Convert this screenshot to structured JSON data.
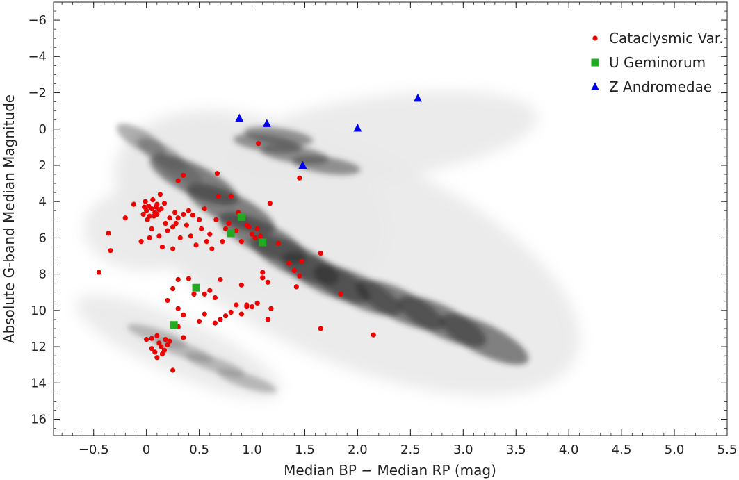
{
  "chart_data": {
    "type": "scatter",
    "title": "",
    "xlabel": "Median BP − Median RP (mag)",
    "ylabel": "Absolute G-band Median Magnitude",
    "xlim": [
      -0.88,
      5.5
    ],
    "ylim": [
      16.9,
      -7.0
    ],
    "y_inverted": true,
    "grid": false,
    "legend_position": "top-right",
    "x_ticks": [
      -0.5,
      0,
      0.5,
      1.0,
      1.5,
      2.0,
      2.5,
      3.0,
      3.5,
      4.0,
      4.5,
      5.0,
      5.5
    ],
    "x_tick_labels": [
      "−0.5",
      "0",
      "0.5",
      "1.0",
      "1.5",
      "2.0",
      "2.5",
      "3.0",
      "3.5",
      "4.0",
      "4.5",
      "5.0",
      "5.5"
    ],
    "y_ticks": [
      -6,
      -4,
      -2,
      0,
      2,
      4,
      6,
      8,
      10,
      12,
      14,
      16
    ],
    "y_tick_labels": [
      "−6",
      "−4",
      "−2",
      "0",
      "2",
      "4",
      "6",
      "8",
      "10",
      "12",
      "14",
      "16"
    ],
    "background": {
      "description": "grey density of field stars (Gaia HR diagram)",
      "color": "#555555"
    },
    "series": [
      {
        "name": "Cataclysmic Var.",
        "marker": "circle",
        "color": "#ee0000",
        "points": [
          [
            -0.45,
            7.9
          ],
          [
            -0.36,
            5.75
          ],
          [
            -0.34,
            6.7
          ],
          [
            -0.2,
            4.9
          ],
          [
            -0.12,
            4.15
          ],
          [
            -0.05,
            6.2
          ],
          [
            -0.03,
            4.7
          ],
          [
            -0.02,
            4.3
          ],
          [
            -0.01,
            4.0
          ],
          [
            0.0,
            4.5
          ],
          [
            0.01,
            5.0
          ],
          [
            0.02,
            4.25
          ],
          [
            0.03,
            6.0
          ],
          [
            0.03,
            4.8
          ],
          [
            0.05,
            4.4
          ],
          [
            0.05,
            5.5
          ],
          [
            0.06,
            3.9
          ],
          [
            0.07,
            4.8
          ],
          [
            0.08,
            4.6
          ],
          [
            0.09,
            4.3
          ],
          [
            0.1,
            4.15
          ],
          [
            0.1,
            4.7
          ],
          [
            0.12,
            4.45
          ],
          [
            0.12,
            5.9
          ],
          [
            0.13,
            3.6
          ],
          [
            0.14,
            4.4
          ],
          [
            0.15,
            6.5
          ],
          [
            0.17,
            4.1
          ],
          [
            0.18,
            5.2
          ],
          [
            0.2,
            5.6
          ],
          [
            0.22,
            4.9
          ],
          [
            0.25,
            5.4
          ],
          [
            0.25,
            6.6
          ],
          [
            0.27,
            4.6
          ],
          [
            0.28,
            5.2
          ],
          [
            0.3,
            4.9
          ],
          [
            0.32,
            6.0
          ],
          [
            0.35,
            4.7
          ],
          [
            0.38,
            5.3
          ],
          [
            0.4,
            4.5
          ],
          [
            0.42,
            5.9
          ],
          [
            0.44,
            4.75
          ],
          [
            0.47,
            6.4
          ],
          [
            0.5,
            5.0
          ],
          [
            0.52,
            5.5
          ],
          [
            0.55,
            4.4
          ],
          [
            0.57,
            6.2
          ],
          [
            0.6,
            5.8
          ],
          [
            0.62,
            6.6
          ],
          [
            0.66,
            5.0
          ],
          [
            0.68,
            3.7
          ],
          [
            0.72,
            6.2
          ],
          [
            0.75,
            5.5
          ],
          [
            0.78,
            5.2
          ],
          [
            0.8,
            3.7
          ],
          [
            0.85,
            5.6
          ],
          [
            0.87,
            4.6
          ],
          [
            0.9,
            6.2
          ],
          [
            0.95,
            5.3
          ],
          [
            0.97,
            5.4
          ],
          [
            1.0,
            5.8
          ],
          [
            1.03,
            6.0
          ],
          [
            1.05,
            5.5
          ],
          [
            1.08,
            5.9
          ],
          [
            0.3,
            2.85
          ],
          [
            0.35,
            2.55
          ],
          [
            0.67,
            2.45
          ],
          [
            1.06,
            0.8
          ],
          [
            1.17,
            4.1
          ],
          [
            1.25,
            6.3
          ],
          [
            1.35,
            7.4
          ],
          [
            1.4,
            7.8
          ],
          [
            1.42,
            8.7
          ],
          [
            1.45,
            8.1
          ],
          [
            1.47,
            7.3
          ],
          [
            1.65,
            6.85
          ],
          [
            1.45,
            2.7
          ],
          [
            1.84,
            9.1
          ],
          [
            1.65,
            11.0
          ],
          [
            2.15,
            11.35
          ],
          [
            0.2,
            9.45
          ],
          [
            0.25,
            8.8
          ],
          [
            0.3,
            8.3
          ],
          [
            0.3,
            9.9
          ],
          [
            0.35,
            10.25
          ],
          [
            0.4,
            8.25
          ],
          [
            0.45,
            9.1
          ],
          [
            0.5,
            10.6
          ],
          [
            0.55,
            9.1
          ],
          [
            0.55,
            10.2
          ],
          [
            0.6,
            8.9
          ],
          [
            0.65,
            9.3
          ],
          [
            0.65,
            10.7
          ],
          [
            0.7,
            8.3
          ],
          [
            0.7,
            10.5
          ],
          [
            0.75,
            10.3
          ],
          [
            0.8,
            10.1
          ],
          [
            0.85,
            9.7
          ],
          [
            0.9,
            10.2
          ],
          [
            0.95,
            9.8
          ],
          [
            0.9,
            8.6
          ],
          [
            0.95,
            9.7
          ],
          [
            1.0,
            9.8
          ],
          [
            1.05,
            9.6
          ],
          [
            1.1,
            8.2
          ],
          [
            1.15,
            10.5
          ],
          [
            1.18,
            9.9
          ],
          [
            1.15,
            8.45
          ],
          [
            1.1,
            7.9
          ],
          [
            0.3,
            10.9
          ],
          [
            0.35,
            11.5
          ],
          [
            0.0,
            11.6
          ],
          [
            0.05,
            11.55
          ],
          [
            0.1,
            11.4
          ],
          [
            0.12,
            11.8
          ],
          [
            0.14,
            12.0
          ],
          [
            0.15,
            12.4
          ],
          [
            0.17,
            12.2
          ],
          [
            0.18,
            11.6
          ],
          [
            0.2,
            11.9
          ],
          [
            0.1,
            12.6
          ],
          [
            0.25,
            13.3
          ],
          [
            0.05,
            12.1
          ],
          [
            0.08,
            12.3
          ],
          [
            0.22,
            11.7
          ]
        ]
      },
      {
        "name": "U Geminorum",
        "marker": "square",
        "color": "#22aa22",
        "points": [
          [
            0.9,
            4.85
          ],
          [
            0.8,
            5.75
          ],
          [
            1.1,
            6.25
          ],
          [
            0.47,
            8.75
          ],
          [
            0.26,
            10.8
          ]
        ]
      },
      {
        "name": "Z Andromedae",
        "marker": "triangle",
        "color": "#0000ee",
        "points": [
          [
            0.88,
            -0.6
          ],
          [
            1.14,
            -0.3
          ],
          [
            2.0,
            -0.05
          ],
          [
            2.57,
            -1.7
          ],
          [
            1.48,
            2.0
          ]
        ]
      }
    ]
  }
}
